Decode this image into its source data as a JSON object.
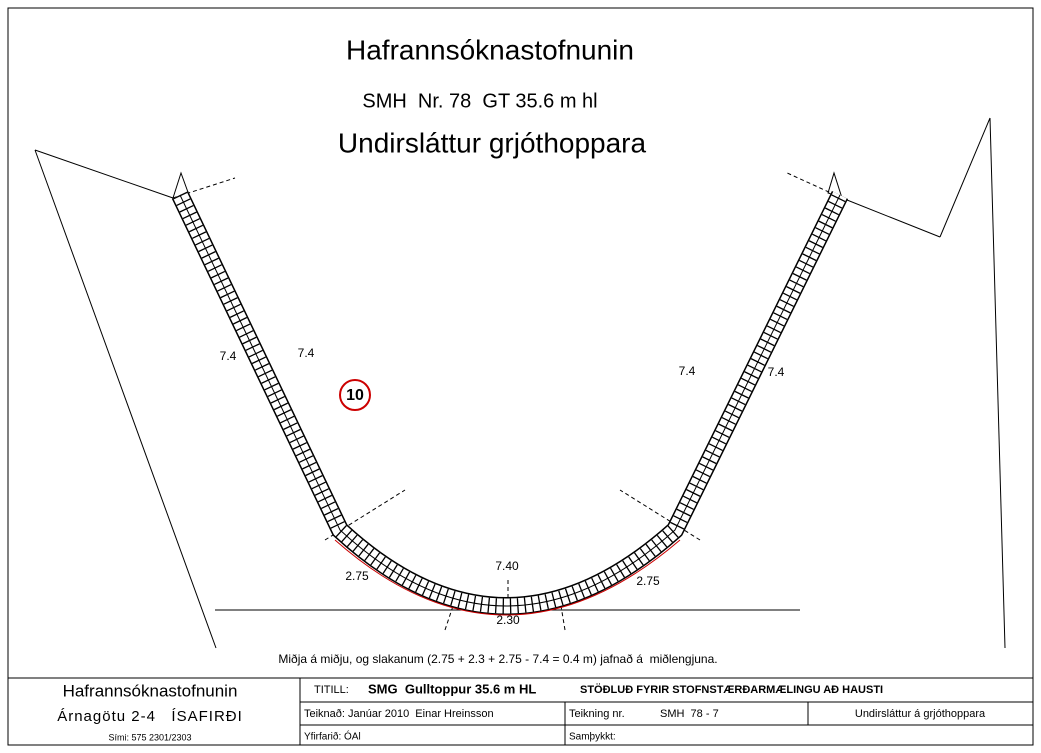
{
  "header": {
    "title": "Hafrannsóknastofnunin",
    "subtitle": "SMH  Nr. 78  GT 35.6 m hl",
    "heading": "Undirsláttur grjóthoppara"
  },
  "drawing": {
    "dimensions": [
      "7.4",
      "7.4",
      "7.4",
      "7.4",
      "2.75",
      "2.75",
      "7.40",
      "2.30"
    ],
    "marker": "10",
    "note": "Miðja á miðju, og slakanum (2.75 + 2.3 + 2.75 - 7.4 = 0.4 m) jafnað á  miðlengjuna."
  },
  "title_block": {
    "org": "Hafrannsóknastofnunin",
    "address": "Árnagötu 2-4   ÍSAFIRÐI",
    "phone": "Sími: 575 2301/2303",
    "title_label": "TITILL:",
    "title": "SMG  Gulltoppur 35.6 m HL",
    "title_desc": "STÖÐLUÐ FYRIR STOFNSTÆRÐARMÆLINGU AÐ HAUSTI",
    "drawn": "Teiknað: Janúar 2010  Einar Hreinsson",
    "drawing_no_label": "Teikning nr.",
    "drawing_no": "SMH  78 - 7",
    "drawing_name": "Undirsláttur á grjóthoppara",
    "checked": "Yfirfarið: ÓAl",
    "approved": "Samþykkt:"
  }
}
